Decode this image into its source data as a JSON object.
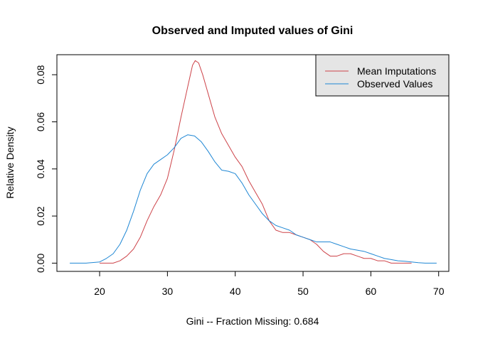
{
  "chart_data": {
    "type": "line",
    "title": "Observed and Imputed values of Gini",
    "xlabel": "Gini   --  Fraction Missing: 0.684",
    "ylabel": "Relative Density",
    "xlim": [
      13.7,
      71.5
    ],
    "ylim": [
      -0.0035,
      0.0885
    ],
    "x_ticks": [
      20,
      30,
      40,
      50,
      60,
      70
    ],
    "y_ticks": [
      0.0,
      0.02,
      0.04,
      0.06,
      0.08
    ],
    "x_tick_labels": [
      "20",
      "30",
      "40",
      "50",
      "60",
      "70"
    ],
    "y_tick_labels": [
      "0.00",
      "0.02",
      "0.04",
      "0.06",
      "0.08"
    ],
    "grid": false,
    "legend_position": "top-right",
    "series": [
      {
        "name": "Mean Imputations",
        "color": "#cd4349",
        "points": [
          [
            20.0,
            0.0
          ],
          [
            22.0,
            0.0
          ],
          [
            23.0,
            0.001
          ],
          [
            24.0,
            0.003
          ],
          [
            25.0,
            0.006
          ],
          [
            26.0,
            0.011
          ],
          [
            27.0,
            0.018
          ],
          [
            28.0,
            0.024
          ],
          [
            29.0,
            0.029
          ],
          [
            30.0,
            0.036
          ],
          [
            31.0,
            0.048
          ],
          [
            32.0,
            0.062
          ],
          [
            33.0,
            0.075
          ],
          [
            33.7,
            0.084
          ],
          [
            34.1,
            0.086
          ],
          [
            34.6,
            0.085
          ],
          [
            35.2,
            0.08
          ],
          [
            36.0,
            0.072
          ],
          [
            37.0,
            0.062
          ],
          [
            38.0,
            0.055
          ],
          [
            39.0,
            0.05
          ],
          [
            40.0,
            0.045
          ],
          [
            41.0,
            0.041
          ],
          [
            42.0,
            0.035
          ],
          [
            43.0,
            0.03
          ],
          [
            44.0,
            0.025
          ],
          [
            45.0,
            0.018
          ],
          [
            46.0,
            0.014
          ],
          [
            47.0,
            0.013
          ],
          [
            48.0,
            0.013
          ],
          [
            49.0,
            0.012
          ],
          [
            50.0,
            0.011
          ],
          [
            51.0,
            0.01
          ],
          [
            52.0,
            0.008
          ],
          [
            53.0,
            0.005
          ],
          [
            54.0,
            0.003
          ],
          [
            55.0,
            0.003
          ],
          [
            56.0,
            0.004
          ],
          [
            57.0,
            0.004
          ],
          [
            58.0,
            0.003
          ],
          [
            59.0,
            0.002
          ],
          [
            60.0,
            0.002
          ],
          [
            61.0,
            0.001
          ],
          [
            62.0,
            0.001
          ],
          [
            63.0,
            0.0
          ],
          [
            64.0,
            0.0
          ],
          [
            65.0,
            0.0
          ],
          [
            66.0,
            0.0
          ]
        ]
      },
      {
        "name": "Observed Values",
        "color": "#1f87d4",
        "points": [
          [
            15.6,
            0.0
          ],
          [
            18.0,
            0.0
          ],
          [
            20.0,
            0.0005
          ],
          [
            21.0,
            0.002
          ],
          [
            22.0,
            0.004
          ],
          [
            23.0,
            0.008
          ],
          [
            24.0,
            0.014
          ],
          [
            25.0,
            0.022
          ],
          [
            26.0,
            0.031
          ],
          [
            27.0,
            0.038
          ],
          [
            28.0,
            0.042
          ],
          [
            29.0,
            0.044
          ],
          [
            30.0,
            0.046
          ],
          [
            31.0,
            0.049
          ],
          [
            32.0,
            0.053
          ],
          [
            33.0,
            0.0545
          ],
          [
            34.0,
            0.054
          ],
          [
            35.0,
            0.0515
          ],
          [
            36.0,
            0.0475
          ],
          [
            37.0,
            0.043
          ],
          [
            38.0,
            0.0395
          ],
          [
            39.0,
            0.039
          ],
          [
            40.0,
            0.038
          ],
          [
            41.0,
            0.034
          ],
          [
            42.0,
            0.029
          ],
          [
            43.0,
            0.025
          ],
          [
            44.0,
            0.021
          ],
          [
            45.0,
            0.018
          ],
          [
            46.0,
            0.016
          ],
          [
            47.0,
            0.015
          ],
          [
            48.0,
            0.014
          ],
          [
            49.0,
            0.012
          ],
          [
            50.0,
            0.011
          ],
          [
            51.0,
            0.01
          ],
          [
            52.0,
            0.009
          ],
          [
            53.0,
            0.009
          ],
          [
            54.0,
            0.009
          ],
          [
            55.0,
            0.008
          ],
          [
            56.0,
            0.007
          ],
          [
            57.0,
            0.006
          ],
          [
            58.0,
            0.0055
          ],
          [
            59.0,
            0.005
          ],
          [
            60.0,
            0.004
          ],
          [
            61.0,
            0.003
          ],
          [
            62.0,
            0.002
          ],
          [
            63.0,
            0.0015
          ],
          [
            64.0,
            0.001
          ],
          [
            65.0,
            0.0008
          ],
          [
            66.0,
            0.0005
          ],
          [
            67.0,
            0.0002
          ],
          [
            68.0,
            0.0
          ],
          [
            69.7,
            0.0
          ]
        ]
      }
    ]
  }
}
